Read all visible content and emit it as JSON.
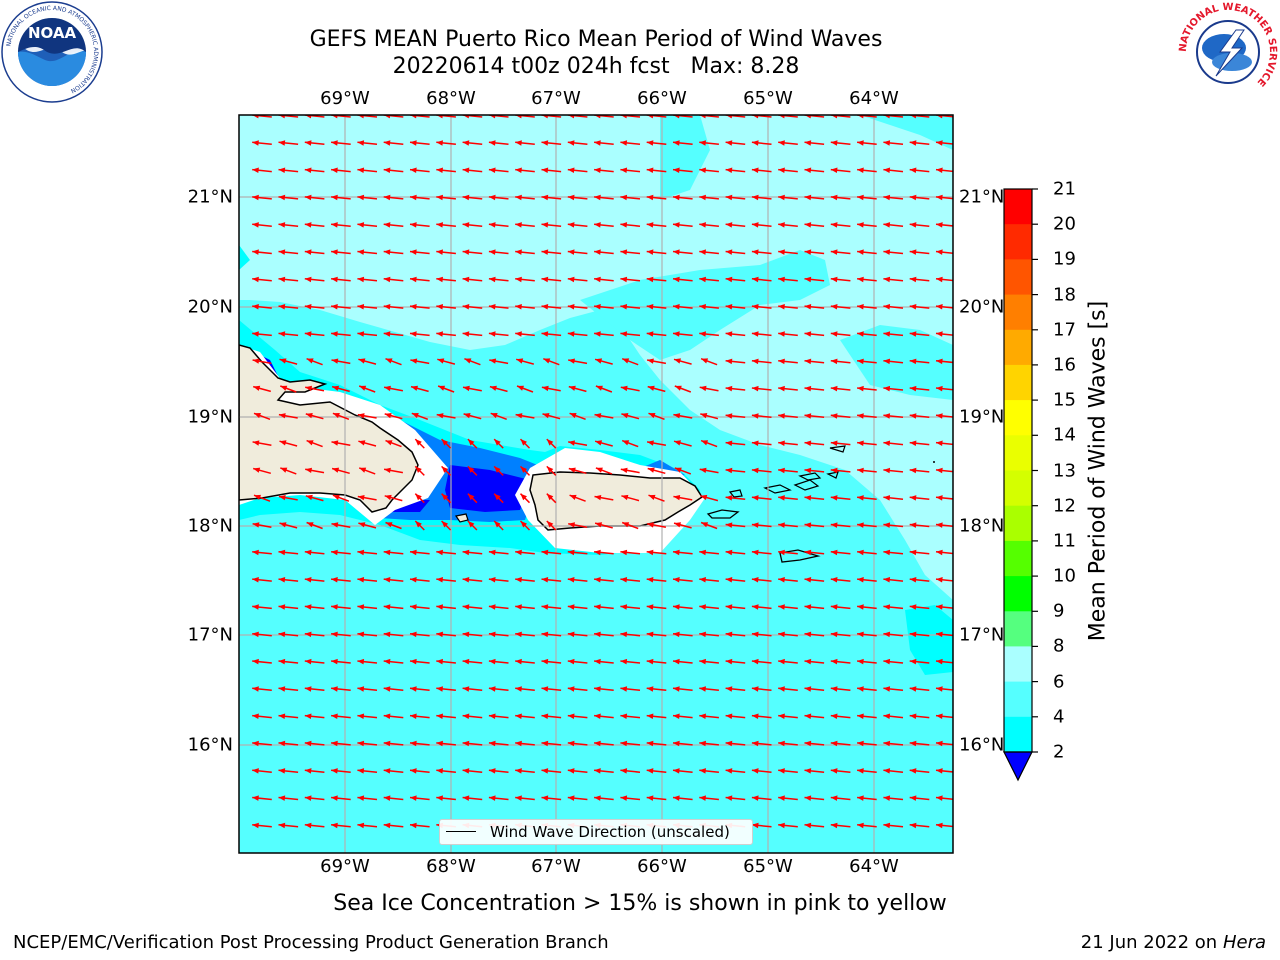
{
  "title": {
    "line1": "GEFS MEAN Puerto Rico Mean Period of Wind Waves",
    "line2": "20220614 t00z 024h fcst   Max: 8.28"
  },
  "map": {
    "region": "Puerto Rico",
    "lon_labels": [
      "69°W",
      "68°W",
      "67°W",
      "66°W",
      "65°W",
      "64°W"
    ],
    "lat_labels": [
      "21°N",
      "20°N",
      "19°N",
      "18°N",
      "17°N",
      "16°N"
    ],
    "arrow_direction": "toward west",
    "colors": {
      "ocean_6_8": "#55ffff",
      "ocean_8_9": "#aaffff",
      "ocean_4_6": "#00ffff",
      "ocean_2_4": "#0080ff",
      "ocean_lt2": "#0000ff",
      "land": "#f0ecdc",
      "arrow": "#ff0000",
      "grid": "#b0b0b0"
    }
  },
  "colorbar": {
    "label": "Mean Period of Wind Waves [s]",
    "ticks": [
      "21",
      "20",
      "19",
      "18",
      "17",
      "16",
      "15",
      "14",
      "13",
      "12",
      "11",
      "10",
      "9",
      "8",
      "6",
      "4",
      "2"
    ],
    "colors": [
      "#ff0000",
      "#ff2a00",
      "#ff5500",
      "#ff7f00",
      "#ffaa00",
      "#ffd400",
      "#ffff00",
      "#eaff00",
      "#d4ff00",
      "#aaff00",
      "#55ff00",
      "#00ff00",
      "#55ff7f",
      "#aaffff",
      "#55ffff",
      "#00ffff",
      "#0080ff"
    ],
    "extend_color": "#0000ff"
  },
  "legend": {
    "label": "Wind Wave Direction (unscaled)"
  },
  "subtitle": "Sea Ice Concentration > 15% is shown in pink to yellow",
  "footer": {
    "left": "NCEP/EMC/Verification Post Processing Product Generation Branch",
    "right_date": "21 Jun 2022 on",
    "right_host": "Hera"
  },
  "logos": {
    "noaa_text": "NOAA",
    "noaa_ring": "NATIONAL OCEANIC AND ATMOSPHERIC ADMINISTRATION",
    "nws_ring": "NATIONAL WEATHER SERVICE"
  }
}
